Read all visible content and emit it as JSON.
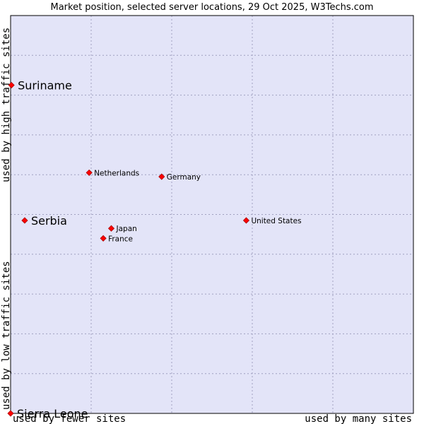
{
  "chart_data": {
    "type": "scatter",
    "title": "Market position, selected server locations, 29 Oct 2025, W3Techs.com",
    "xlabel_low": "used by fewer sites",
    "xlabel_high": "used by many sites",
    "ylabel_low": "used by low traffic sites",
    "ylabel_high": "used by high traffic sites",
    "xlim": [
      0,
      100
    ],
    "ylim": [
      0,
      100
    ],
    "grid": true,
    "colors": {
      "plot_bg": "#e3e4f8",
      "marker": "#ff0000",
      "marker_stroke": "#aa0000",
      "frame": "#000000"
    },
    "points": [
      {
        "label": "Suriname",
        "x": 0.2,
        "y": 82.5,
        "emphasis": true
      },
      {
        "label": "Netherlands",
        "x": 19.5,
        "y": 60.5,
        "emphasis": false
      },
      {
        "label": "Germany",
        "x": 37.5,
        "y": 59.5,
        "emphasis": false
      },
      {
        "label": "Serbia",
        "x": 3.5,
        "y": 48.5,
        "emphasis": true
      },
      {
        "label": "United States",
        "x": 58.5,
        "y": 48.5,
        "emphasis": false
      },
      {
        "label": "Japan",
        "x": 25.0,
        "y": 46.5,
        "emphasis": false
      },
      {
        "label": "France",
        "x": 23.0,
        "y": 44.0,
        "emphasis": false
      },
      {
        "label": "Sierra Leone",
        "x": 0.0,
        "y": 0.0,
        "emphasis": true
      }
    ]
  }
}
